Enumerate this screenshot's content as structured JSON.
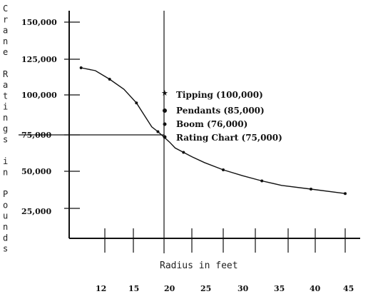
{
  "chart_data": {
    "type": "line",
    "xlabel": "Radius in feet",
    "ylabel": "Crane Ratings in Pounds",
    "x_ticks": [
      "12",
      "15",
      "20",
      "25",
      "30",
      "35",
      "40",
      "45"
    ],
    "y_ticks": [
      "150,000",
      "125,000",
      "100,000",
      "75,000",
      "50,000",
      "25,000"
    ],
    "y_tick_values": [
      150000,
      125000,
      100000,
      75000,
      50000,
      25000
    ],
    "ylim": [
      0,
      155000
    ],
    "series": [
      {
        "x": [
          9.5,
          11,
          12.5,
          14,
          15.5,
          17,
          18,
          19,
          20,
          21,
          22,
          23.5,
          25,
          27,
          30,
          33,
          36,
          39,
          42,
          45
        ],
        "y": [
          119000,
          117000,
          111000,
          104000,
          95000,
          86000,
          80000,
          77000,
          73500,
          70000,
          66000,
          63000,
          60000,
          56000,
          51000,
          47000,
          43500,
          40500,
          38000,
          35000
        ]
      }
    ],
    "reference_lines": [
      {
        "orientation": "vertical",
        "x": 20
      },
      {
        "orientation": "horizontal",
        "y": 75000
      }
    ],
    "annotations": [
      {
        "text": "Tipping (100,000)",
        "y": 100000,
        "marker": "star"
      },
      {
        "text": "Pendants (85,000)",
        "y": 85000,
        "marker": "dot"
      },
      {
        "text": "Boom (76,000)",
        "y": 76000,
        "marker": "dot"
      },
      {
        "text": "Rating Chart (75,000)",
        "y": 75000,
        "marker": "dot"
      }
    ]
  }
}
